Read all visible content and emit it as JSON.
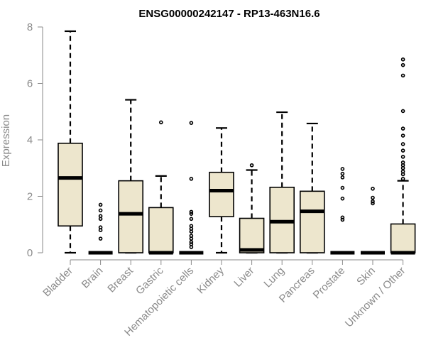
{
  "chart_data": {
    "type": "box",
    "title": "ENSG00000242147 - RP13-463N16.6",
    "xlabel": "",
    "ylabel": "Expression",
    "ylim": [
      0,
      8
    ],
    "yticks": [
      "0",
      "2",
      "4",
      "6",
      "8"
    ],
    "categories": [
      "Bladder",
      "Brain",
      "Breast",
      "Gastric",
      "Hematopoietic cells",
      "Kidney",
      "Liver",
      "Lung",
      "Pancreas",
      "Prostate",
      "Skin",
      "Unknown / Other"
    ],
    "box_color": "#ede6cd",
    "boxes": [
      {
        "min": 0,
        "q1": 0.95,
        "median": 2.65,
        "q3": 3.88,
        "max": 7.85,
        "outliers": []
      },
      {
        "min": 0,
        "q1": 0,
        "median": 0,
        "q3": 0,
        "max": 0,
        "outliers": [
          1.7,
          1.5,
          1.3,
          1.2,
          0.9,
          0.8,
          0.5
        ]
      },
      {
        "min": 0,
        "q1": 0,
        "median": 1.38,
        "q3": 2.55,
        "max": 5.42,
        "outliers": []
      },
      {
        "min": 0,
        "q1": 0,
        "median": 0,
        "q3": 1.6,
        "max": 2.72,
        "outliers": [
          4.62
        ]
      },
      {
        "min": 0,
        "q1": 0,
        "median": 0,
        "q3": 0,
        "max": 0,
        "outliers": [
          4.6,
          2.62,
          1.45,
          1.38,
          1.2,
          0.95,
          0.85,
          0.75,
          0.6,
          0.5,
          0.38,
          0.3,
          0.2
        ]
      },
      {
        "min": 0,
        "q1": 1.28,
        "median": 2.2,
        "q3": 2.85,
        "max": 4.42,
        "outliers": []
      },
      {
        "min": 0,
        "q1": 0,
        "median": 0.1,
        "q3": 1.22,
        "max": 2.93,
        "outliers": [
          3.1
        ]
      },
      {
        "min": 0,
        "q1": 0,
        "median": 1.1,
        "q3": 2.32,
        "max": 4.98,
        "outliers": []
      },
      {
        "min": 0,
        "q1": 0,
        "median": 1.47,
        "q3": 2.18,
        "max": 4.58,
        "outliers": []
      },
      {
        "min": 0,
        "q1": 0,
        "median": 0,
        "q3": 0,
        "max": 0,
        "outliers": [
          2.97,
          2.8,
          2.67,
          2.3,
          1.92,
          1.25,
          1.17
        ]
      },
      {
        "min": 0,
        "q1": 0,
        "median": 0,
        "q3": 0,
        "max": 0,
        "outliers": [
          2.27,
          1.95,
          1.82,
          1.75
        ]
      },
      {
        "min": 0,
        "q1": 0,
        "median": 0,
        "q3": 1.02,
        "max": 2.55,
        "outliers": [
          6.85,
          6.65,
          6.28,
          5.02,
          4.4,
          4.15,
          3.85,
          3.62,
          3.4,
          3.2,
          3.1,
          3.0,
          2.88,
          2.78,
          2.62
        ]
      }
    ]
  }
}
